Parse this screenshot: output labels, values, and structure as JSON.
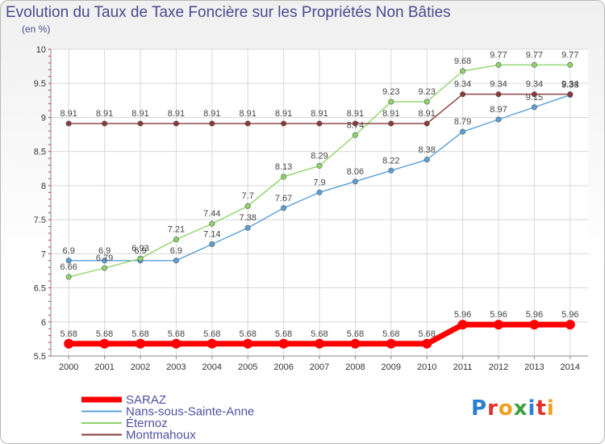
{
  "title": "Evolution du Taux de Taxe Foncière sur les Propriétés Non Bâties",
  "unit_label": "(en %)",
  "logo": {
    "text": "Proxiti",
    "letter_colors": [
      "#2a7fd0",
      "#e03030",
      "#f0a020",
      "#3aa040",
      "#2a7fd0",
      "#e03030",
      "#f0a020"
    ]
  },
  "chart_data": {
    "type": "line",
    "title": "Evolution du Taux de Taxe Foncière sur les Propriétés Non Bâties",
    "ylabel": "(en %)",
    "xlabel": "",
    "x": [
      "2000",
      "2001",
      "2002",
      "2003",
      "2004",
      "2005",
      "2006",
      "2007",
      "2008",
      "2009",
      "2010",
      "2011",
      "2012",
      "2013",
      "2014"
    ],
    "ylim": [
      5.5,
      10
    ],
    "yticks": [
      5.5,
      6,
      6.5,
      7,
      7.5,
      8,
      8.5,
      9,
      9.5,
      10
    ],
    "ytick_labels": [
      "5.5",
      "6",
      "6.5",
      "7",
      "7.5",
      "8",
      "8.5",
      "9",
      "9.5",
      "10"
    ],
    "grid": true,
    "legend_position": "bottom-left",
    "series": [
      {
        "name": "SARAZ",
        "color": "#ff0000",
        "values": [
          5.68,
          5.68,
          5.68,
          5.68,
          5.68,
          5.68,
          5.68,
          5.68,
          5.68,
          5.68,
          5.68,
          5.96,
          5.96,
          5.96,
          5.96
        ],
        "labels": [
          "5.68",
          "5.68",
          "5.68",
          "5.68",
          "5.68",
          "5.68",
          "5.68",
          "5.68",
          "5.68",
          "5.68",
          "5.68",
          "5.96",
          "5.96",
          "5.96",
          "5.96"
        ]
      },
      {
        "name": "Nans-sous-Sainte-Anne",
        "color": "#5aa0d8",
        "values": [
          6.9,
          6.9,
          6.9,
          6.9,
          7.14,
          7.38,
          7.67,
          7.9,
          8.06,
          8.22,
          8.38,
          8.79,
          8.97,
          9.15,
          9.33
        ],
        "labels": [
          "6.9",
          "6.9",
          "6.9",
          "6.9",
          "7.14",
          "7.38",
          "7.67",
          "7.9",
          "8.06",
          "8.22",
          "8.38",
          "8.79",
          "8.97",
          "9.15",
          "9.33"
        ]
      },
      {
        "name": "Éternoz",
        "color": "#8fd46a",
        "values": [
          6.66,
          6.79,
          6.93,
          7.21,
          7.44,
          7.7,
          8.13,
          8.29,
          8.74,
          9.23,
          9.23,
          9.68,
          9.77,
          9.77,
          9.77
        ],
        "labels": [
          "6.66",
          "6.79",
          "6.93",
          "7.21",
          "7.44",
          "7.7",
          "8.13",
          "8.29",
          "8.74",
          "9.23",
          "9.23",
          "9.68",
          "9.77",
          "9.77",
          "9.77"
        ]
      },
      {
        "name": "Montmahoux",
        "color": "#8a3a3a",
        "values": [
          8.91,
          8.91,
          8.91,
          8.91,
          8.91,
          8.91,
          8.91,
          8.91,
          8.91,
          8.91,
          8.91,
          9.34,
          9.34,
          9.34,
          9.34
        ],
        "labels": [
          "8.91",
          "8.91",
          "8.91",
          "8.91",
          "8.91",
          "8.91",
          "8.91",
          "8.91",
          "8.91",
          "8.91",
          "8.91",
          "9.34",
          "9.34",
          "9.34",
          "9.34"
        ]
      }
    ]
  }
}
